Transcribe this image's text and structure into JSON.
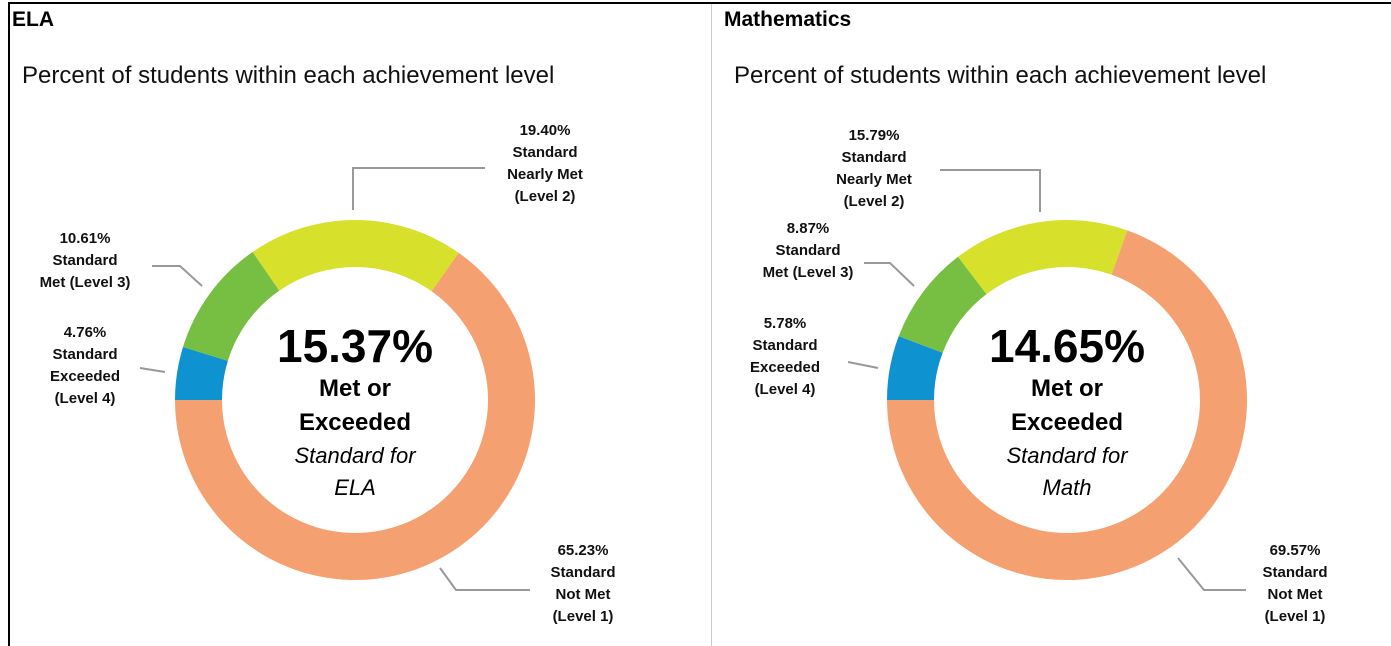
{
  "chart_data": [
    {
      "type": "donut",
      "title": "ELA",
      "subtitle": "Percent of students within each achievement level",
      "center_value": "15.37%",
      "center_label": "Met or Exceeded",
      "center_note": "Standard for ELA",
      "categories": [
        "Standard Exceeded (Level 4)",
        "Standard Met (Level 3)",
        "Standard Nearly Met (Level 2)",
        "Standard Not Met (Level 1)"
      ],
      "values": [
        4.76,
        10.61,
        19.4,
        65.23
      ],
      "value_labels": [
        "4.76%",
        "10.61%",
        "19.40%",
        "65.23%"
      ],
      "colors": [
        "#0e93d0",
        "#77bf43",
        "#d7e02a",
        "#f5a070"
      ]
    },
    {
      "type": "donut",
      "title": "Mathematics",
      "subtitle": "Percent of students within each achievement level",
      "center_value": "14.65%",
      "center_label": "Met or Exceeded",
      "center_note": "Standard for Math",
      "categories": [
        "Standard Exceeded (Level 4)",
        "Standard Met (Level 3)",
        "Standard Nearly Met (Level 2)",
        "Standard Not Met (Level 1)"
      ],
      "values": [
        5.78,
        8.87,
        15.79,
        69.57
      ],
      "value_labels": [
        "5.78%",
        "8.87%",
        "15.79%",
        "69.57%"
      ],
      "colors": [
        "#0e93d0",
        "#77bf43",
        "#d7e02a",
        "#f5a070"
      ]
    }
  ]
}
